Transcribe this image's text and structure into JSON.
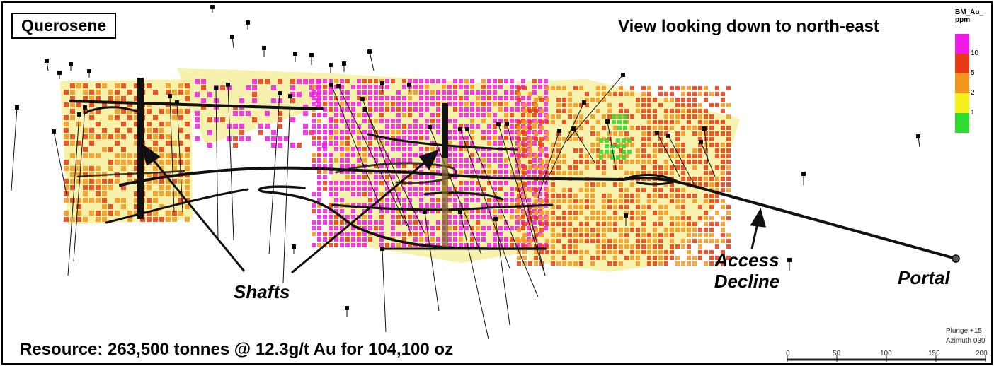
{
  "title": "Querosene",
  "view_label": "View looking down to north-east",
  "labels": {
    "shafts": "Shafts",
    "access_decline_1": "Access",
    "access_decline_2": "Decline",
    "portal": "Portal"
  },
  "resource": "Resource:  263,500 tonnes @ 12.3g/t Au for 104,100 oz",
  "legend": {
    "title_1": "BM_Au_",
    "title_2": "ppm",
    "ticks": [
      "10",
      "5",
      "2",
      "1"
    ],
    "colors": [
      "#f01ae8",
      "#e83a12",
      "#f5961e",
      "#f5f01c",
      "#2fdc2f"
    ]
  },
  "orientation": {
    "plunge": "Plunge +15",
    "azimuth": "Azimuth 030"
  },
  "scale_bar": {
    "ticks": [
      "0",
      "50",
      "100",
      "150",
      "200"
    ]
  },
  "colors": {
    "surface": "#f6f0a0",
    "drive": "#111111",
    "high_grade": "#f01ae8",
    "grade_red": "#e83a12",
    "grade_orange": "#f5961e",
    "grade_green": "#2fdc2f"
  }
}
